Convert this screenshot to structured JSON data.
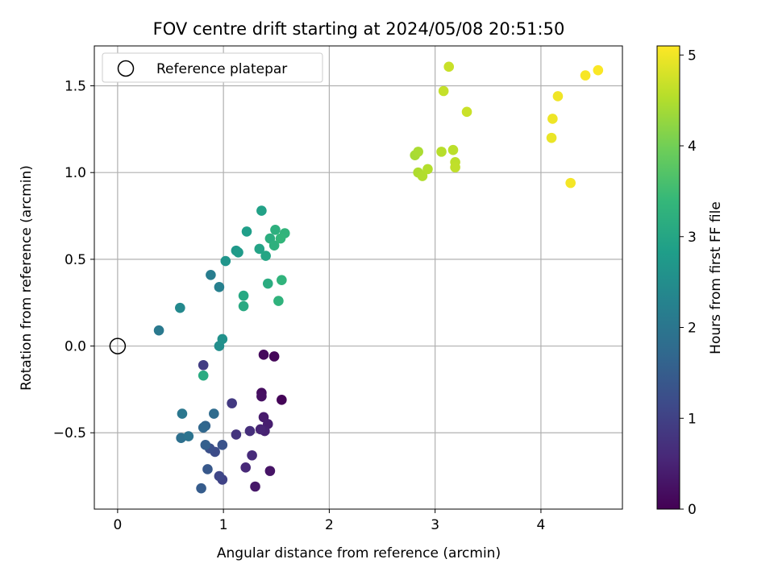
{
  "chart_data": {
    "type": "scatter",
    "title": "FOV centre drift starting at 2024/05/08 20:51:50",
    "xlabel": "Angular distance from reference (arcmin)",
    "ylabel": "Rotation from reference (arcmin)",
    "xlim": [
      -0.22,
      4.77
    ],
    "ylim": [
      -0.94,
      1.73
    ],
    "xticks": [
      "0",
      "1",
      "2",
      "3",
      "4"
    ],
    "xtick_values": [
      0,
      1,
      2,
      3,
      4
    ],
    "yticks": [
      "−0.5",
      "0.0",
      "0.5",
      "1.0",
      "1.5"
    ],
    "ytick_values": [
      -0.5,
      0,
      0.5,
      1.0,
      1.5
    ],
    "grid": true,
    "legend": {
      "placement": "top-left",
      "entries": [
        "Reference platepar"
      ]
    },
    "reference_point": {
      "x": 0,
      "y": 0
    },
    "colorbar": {
      "label": "Hours from first FF file",
      "colormap": "viridis",
      "range": [
        0,
        5.1
      ],
      "ticks": [
        "0",
        "1",
        "2",
        "3",
        "4",
        "5"
      ],
      "tick_values": [
        0,
        1,
        2,
        3,
        4,
        5
      ],
      "colors": [
        "#440154",
        "#482878",
        "#3e4989",
        "#31688e",
        "#26828e",
        "#1f9e89",
        "#35b779",
        "#6ece58",
        "#b5de2b",
        "#fde725"
      ]
    },
    "points": [
      {
        "x": 1.55,
        "y": -0.31,
        "hours": 0.05
      },
      {
        "x": 1.48,
        "y": -0.06,
        "hours": 0.08
      },
      {
        "x": 1.38,
        "y": -0.05,
        "hours": 0.12
      },
      {
        "x": 1.36,
        "y": -0.27,
        "hours": 0.18
      },
      {
        "x": 1.36,
        "y": -0.29,
        "hours": 0.22
      },
      {
        "x": 1.44,
        "y": -0.72,
        "hours": 0.28
      },
      {
        "x": 1.3,
        "y": -0.81,
        "hours": 0.32
      },
      {
        "x": 1.38,
        "y": -0.41,
        "hours": 0.38
      },
      {
        "x": 1.42,
        "y": -0.45,
        "hours": 0.42
      },
      {
        "x": 1.39,
        "y": -0.49,
        "hours": 0.48
      },
      {
        "x": 1.35,
        "y": -0.48,
        "hours": 0.52
      },
      {
        "x": 1.21,
        "y": -0.7,
        "hours": 0.58
      },
      {
        "x": 1.27,
        "y": -0.63,
        "hours": 0.62
      },
      {
        "x": 1.25,
        "y": -0.49,
        "hours": 0.68
      },
      {
        "x": 1.12,
        "y": -0.51,
        "hours": 0.78
      },
      {
        "x": 1.08,
        "y": -0.33,
        "hours": 0.85
      },
      {
        "x": 0.81,
        "y": -0.11,
        "hours": 0.92
      },
      {
        "x": 0.99,
        "y": -0.77,
        "hours": 1.02
      },
      {
        "x": 0.96,
        "y": -0.75,
        "hours": 1.1
      },
      {
        "x": 0.92,
        "y": -0.61,
        "hours": 1.18
      },
      {
        "x": 0.87,
        "y": -0.59,
        "hours": 1.25
      },
      {
        "x": 0.99,
        "y": -0.57,
        "hours": 1.32
      },
      {
        "x": 0.85,
        "y": -0.71,
        "hours": 1.4
      },
      {
        "x": 0.79,
        "y": -0.82,
        "hours": 1.48
      },
      {
        "x": 0.83,
        "y": -0.57,
        "hours": 1.55
      },
      {
        "x": 0.83,
        "y": -0.46,
        "hours": 1.62
      },
      {
        "x": 0.81,
        "y": -0.47,
        "hours": 1.7
      },
      {
        "x": 0.91,
        "y": -0.39,
        "hours": 1.78
      },
      {
        "x": 0.6,
        "y": -0.53,
        "hours": 1.88
      },
      {
        "x": 0.67,
        "y": -0.52,
        "hours": 1.95
      },
      {
        "x": 0.61,
        "y": -0.39,
        "hours": 2.02
      },
      {
        "x": 0.39,
        "y": 0.09,
        "hours": 2.08
      },
      {
        "x": 0.88,
        "y": 0.41,
        "hours": 2.15
      },
      {
        "x": 0.96,
        "y": 0.34,
        "hours": 2.22
      },
      {
        "x": 0.59,
        "y": 0.22,
        "hours": 2.4
      },
      {
        "x": 0.96,
        "y": 0.0,
        "hours": 2.5
      },
      {
        "x": 0.99,
        "y": 0.04,
        "hours": 2.58
      },
      {
        "x": 1.02,
        "y": 0.49,
        "hours": 2.65
      },
      {
        "x": 1.12,
        "y": 0.55,
        "hours": 2.72
      },
      {
        "x": 1.14,
        "y": 0.54,
        "hours": 2.78
      },
      {
        "x": 1.22,
        "y": 0.66,
        "hours": 2.85
      },
      {
        "x": 1.36,
        "y": 0.78,
        "hours": 2.9
      },
      {
        "x": 1.34,
        "y": 0.56,
        "hours": 2.95
      },
      {
        "x": 1.4,
        "y": 0.52,
        "hours": 3.0
      },
      {
        "x": 1.19,
        "y": 0.29,
        "hours": 3.05
      },
      {
        "x": 1.19,
        "y": 0.23,
        "hours": 3.08
      },
      {
        "x": 0.81,
        "y": -0.17,
        "hours": 3.12
      },
      {
        "x": 1.42,
        "y": 0.36,
        "hours": 3.15
      },
      {
        "x": 1.44,
        "y": 0.62,
        "hours": 3.18
      },
      {
        "x": 1.49,
        "y": 0.67,
        "hours": 3.22
      },
      {
        "x": 1.48,
        "y": 0.58,
        "hours": 3.25
      },
      {
        "x": 1.52,
        "y": 0.26,
        "hours": 3.28
      },
      {
        "x": 1.55,
        "y": 0.38,
        "hours": 3.3
      },
      {
        "x": 1.58,
        "y": 0.65,
        "hours": 3.32
      },
      {
        "x": 1.54,
        "y": 0.62,
        "hours": 3.35
      },
      {
        "x": 2.81,
        "y": 1.1,
        "hours": 4.42
      },
      {
        "x": 2.84,
        "y": 1.12,
        "hours": 4.45
      },
      {
        "x": 2.84,
        "y": 1.0,
        "hours": 4.48
      },
      {
        "x": 2.88,
        "y": 0.98,
        "hours": 4.5
      },
      {
        "x": 2.93,
        "y": 1.02,
        "hours": 4.52
      },
      {
        "x": 3.06,
        "y": 1.12,
        "hours": 4.55
      },
      {
        "x": 3.17,
        "y": 1.13,
        "hours": 4.58
      },
      {
        "x": 3.19,
        "y": 1.06,
        "hours": 4.6
      },
      {
        "x": 3.19,
        "y": 1.03,
        "hours": 4.62
      },
      {
        "x": 3.08,
        "y": 1.47,
        "hours": 4.65
      },
      {
        "x": 3.13,
        "y": 1.61,
        "hours": 4.68
      },
      {
        "x": 3.3,
        "y": 1.35,
        "hours": 4.7
      },
      {
        "x": 4.1,
        "y": 1.2,
        "hours": 4.95
      },
      {
        "x": 4.11,
        "y": 1.31,
        "hours": 4.98
      },
      {
        "x": 4.16,
        "y": 1.44,
        "hours": 5.0
      },
      {
        "x": 4.28,
        "y": 0.94,
        "hours": 5.03
      },
      {
        "x": 4.42,
        "y": 1.56,
        "hours": 5.05
      },
      {
        "x": 4.54,
        "y": 1.59,
        "hours": 5.08
      }
    ]
  }
}
